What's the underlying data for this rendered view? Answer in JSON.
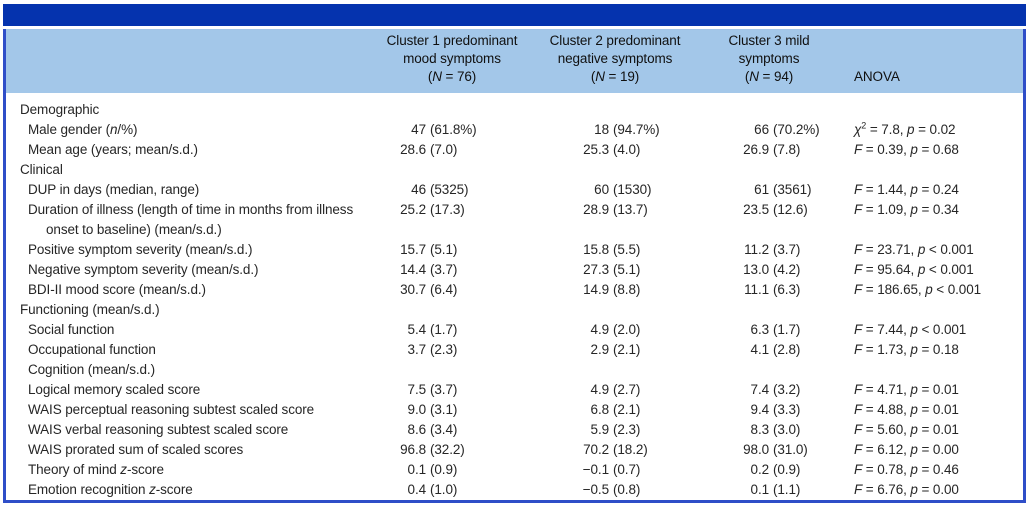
{
  "colors": {
    "top_bar": "#0533ae",
    "header_band": "#a3c7e9",
    "frame_border": "#2f4ec8",
    "body_text": "#262626"
  },
  "table": {
    "columns": [
      {
        "key": "row-labels",
        "lines": []
      },
      {
        "key": "cluster1",
        "lines": [
          "Cluster 1 predominant",
          "mood symptoms",
          "(N = 76)"
        ]
      },
      {
        "key": "cluster2",
        "lines": [
          "Cluster 2 predominant",
          "negative symptoms",
          "(N = 19)"
        ]
      },
      {
        "key": "cluster3",
        "lines": [
          "Cluster 3 mild",
          "symptoms",
          "(N = 94)"
        ]
      },
      {
        "key": "anova",
        "lines": [
          "ANOVA"
        ]
      }
    ],
    "rows": [
      {
        "label": "Demographic",
        "type": "section",
        "cells": [
          "",
          "",
          ""
        ],
        "anova": ""
      },
      {
        "label": "Male gender (n/%)",
        "type": "item",
        "cells": [
          "47 (61.8%)",
          "18 (94.7%)",
          "66 (70.2%)"
        ],
        "anova": "χ² = 7.8, p = 0.02"
      },
      {
        "label": "Mean age (years; mean/s.d.)",
        "type": "item",
        "cells": [
          "28.6 (7.0)",
          "25.3 (4.0)",
          "26.9 (7.8)"
        ],
        "anova": "F = 0.39, p = 0.68"
      },
      {
        "label": "Clinical",
        "type": "section",
        "cells": [
          "",
          "",
          ""
        ],
        "anova": ""
      },
      {
        "label": "DUP in days (median, range)",
        "type": "item",
        "cells": [
          "46 (5325)",
          "60 (1530)",
          "61 (3561)"
        ],
        "anova": "F = 1.44, p = 0.24"
      },
      {
        "label": "Duration of illness (length of time in months from illness onset to baseline) (mean/s.d.)",
        "type": "item-wrap",
        "cells": [
          "25.2 (17.3)",
          "28.9 (13.7)",
          "23.5 (12.6)"
        ],
        "anova": "F = 1.09, p = 0.34"
      },
      {
        "label": "Positive symptom severity (mean/s.d.)",
        "type": "item",
        "cells": [
          "15.7 (5.1)",
          "15.8 (5.5)",
          "11.2 (3.7)"
        ],
        "anova": "F = 23.71, p < 0.001"
      },
      {
        "label": "Negative symptom severity (mean/s.d.)",
        "type": "item",
        "cells": [
          "14.4 (3.7)",
          "27.3 (5.1)",
          "13.0 (4.2)"
        ],
        "anova": "F = 95.64, p < 0.001"
      },
      {
        "label": "BDI-II mood score (mean/s.d.)",
        "type": "item",
        "cells": [
          "30.7 (6.4)",
          "14.9 (8.8)",
          "11.1 (6.3)"
        ],
        "anova": "F = 186.65, p < 0.001"
      },
      {
        "label": "Functioning (mean/s.d.)",
        "type": "section",
        "cells": [
          "",
          "",
          ""
        ],
        "anova": ""
      },
      {
        "label": "Social function",
        "type": "item",
        "cells": [
          "5.4 (1.7)",
          "4.9 (2.0)",
          "6.3 (1.7)"
        ],
        "anova": "F = 7.44, p < 0.001"
      },
      {
        "label": "Occupational function",
        "type": "item",
        "cells": [
          "3.7 (2.3)",
          "2.9 (2.1)",
          "4.1 (2.8)"
        ],
        "anova": "F = 1.73, p = 0.18"
      },
      {
        "label": "Cognition (mean/s.d.)",
        "type": "section-indented",
        "cells": [
          "",
          "",
          ""
        ],
        "anova": ""
      },
      {
        "label": "Logical memory scaled score",
        "type": "item",
        "cells": [
          "7.5 (3.7)",
          "4.9 (2.7)",
          "7.4 (3.2)"
        ],
        "anova": "F = 4.71, p = 0.01"
      },
      {
        "label": "WAIS perceptual reasoning subtest scaled score",
        "type": "item",
        "cells": [
          "9.0 (3.1)",
          "6.8 (2.1)",
          "9.4 (3.3)"
        ],
        "anova": "F = 4.88, p = 0.01"
      },
      {
        "label": "WAIS verbal reasoning subtest scaled score",
        "type": "item",
        "cells": [
          "8.6 (3.4)",
          "5.9 (2.3)",
          "8.3 (3.0)"
        ],
        "anova": "F = 5.60, p = 0.01"
      },
      {
        "label": "WAIS prorated sum of scaled scores",
        "type": "item",
        "cells": [
          "96.8 (32.2)",
          "70.2 (18.2)",
          "98.0 (31.0)"
        ],
        "anova": "F = 6.12, p = 0.00"
      },
      {
        "label": "Theory of mind z-score",
        "type": "item",
        "cells": [
          "0.1 (0.9)",
          "−0.1 (0.7)",
          "0.2 (0.9)"
        ],
        "anova": "F = 0.78, p = 0.46"
      },
      {
        "label": "Emotion recognition z-score",
        "type": "item",
        "cells": [
          "0.4 (1.0)",
          "−0.5 (0.8)",
          "0.1 (1.1)"
        ],
        "anova": "F = 6.76, p = 0.00"
      }
    ]
  }
}
